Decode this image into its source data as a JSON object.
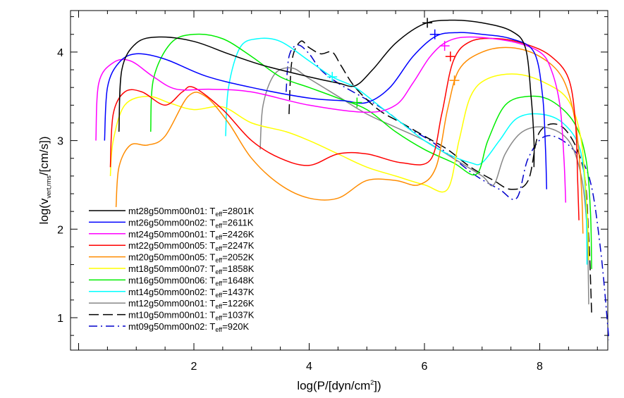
{
  "chart_data": {
    "type": "line",
    "xlabel": "log(P/[dyn/cm2])",
    "ylabel": "log(vvert,rms/[cm/s])",
    "xlim": [
      0,
      9.3
    ],
    "ylim": [
      0.5,
      4.5
    ],
    "xticks": [
      "2",
      "4",
      "6",
      "8"
    ],
    "yticks": [
      "1",
      "2",
      "3",
      "4"
    ],
    "grid": false,
    "legend_position": "lower-left",
    "series": [
      {
        "name": "mt28g50mm00n01: Teff=2801K",
        "model": "mt28g50mm00n01",
        "teff": "2801K",
        "color": "#000000",
        "dash": "solid",
        "marker": [
          6.05,
          4.33
        ],
        "points": [
          [
            0.7,
            3.1
          ],
          [
            0.75,
            3.8
          ],
          [
            1.0,
            4.1
          ],
          [
            1.4,
            4.17
          ],
          [
            2.0,
            4.12
          ],
          [
            2.6,
            3.98
          ],
          [
            3.2,
            3.85
          ],
          [
            4.0,
            3.72
          ],
          [
            4.5,
            3.65
          ],
          [
            4.8,
            3.62
          ],
          [
            5.1,
            3.8
          ],
          [
            5.5,
            4.1
          ],
          [
            6.0,
            4.32
          ],
          [
            6.5,
            4.36
          ],
          [
            7.0,
            4.33
          ],
          [
            7.5,
            4.24
          ],
          [
            7.75,
            4.05
          ],
          [
            7.85,
            3.5
          ],
          [
            7.9,
            3.0
          ],
          [
            7.9,
            2.7
          ]
        ]
      },
      {
        "name": "mt26g50mm00n02: Teff=2611K",
        "model": "mt26g50mm00n02",
        "teff": "2611K",
        "color": "#0000ff",
        "dash": "solid",
        "marker": [
          6.18,
          4.2
        ],
        "points": [
          [
            0.45,
            3.0
          ],
          [
            0.5,
            3.6
          ],
          [
            0.7,
            3.88
          ],
          [
            1.0,
            3.98
          ],
          [
            1.5,
            3.92
          ],
          [
            2.2,
            3.73
          ],
          [
            3.0,
            3.6
          ],
          [
            4.0,
            3.48
          ],
          [
            4.6,
            3.45
          ],
          [
            5.0,
            3.43
          ],
          [
            5.4,
            3.6
          ],
          [
            5.8,
            3.95
          ],
          [
            6.2,
            4.18
          ],
          [
            6.6,
            4.22
          ],
          [
            7.0,
            4.2
          ],
          [
            7.5,
            4.15
          ],
          [
            7.9,
            4.0
          ],
          [
            8.05,
            3.5
          ],
          [
            8.1,
            2.9
          ],
          [
            8.12,
            2.45
          ]
        ]
      },
      {
        "name": "mt24g50mm00n01: Teff=2426K",
        "model": "mt24g50mm00n01",
        "teff": "2426K",
        "color": "#ff00ff",
        "dash": "solid",
        "marker": [
          6.35,
          4.07
        ],
        "points": [
          [
            0.3,
            3.0
          ],
          [
            0.35,
            3.65
          ],
          [
            0.6,
            3.88
          ],
          [
            0.9,
            3.9
          ],
          [
            1.3,
            3.72
          ],
          [
            1.7,
            3.58
          ],
          [
            2.3,
            3.58
          ],
          [
            3.0,
            3.55
          ],
          [
            4.0,
            3.4
          ],
          [
            5.0,
            3.32
          ],
          [
            5.5,
            3.4
          ],
          [
            5.8,
            3.65
          ],
          [
            6.1,
            3.95
          ],
          [
            6.4,
            4.12
          ],
          [
            6.8,
            4.17
          ],
          [
            7.5,
            4.12
          ],
          [
            8.0,
            4.0
          ],
          [
            8.2,
            3.8
          ],
          [
            8.35,
            3.4
          ],
          [
            8.42,
            2.8
          ],
          [
            8.45,
            2.3
          ]
        ]
      },
      {
        "name": "mt22g50mm00n05: Teff=2247K",
        "model": "mt22g50mm00n05",
        "teff": "2247K",
        "color": "#ff0000",
        "dash": "solid",
        "marker": [
          6.45,
          3.95
        ],
        "points": [
          [
            0.55,
            2.7
          ],
          [
            0.6,
            3.3
          ],
          [
            0.8,
            3.55
          ],
          [
            1.1,
            3.55
          ],
          [
            1.5,
            3.4
          ],
          [
            1.8,
            3.55
          ],
          [
            2.0,
            3.6
          ],
          [
            2.5,
            3.35
          ],
          [
            3.0,
            3.0
          ],
          [
            3.5,
            2.8
          ],
          [
            4.0,
            2.72
          ],
          [
            4.5,
            2.85
          ],
          [
            5.0,
            2.85
          ],
          [
            5.6,
            2.75
          ],
          [
            6.1,
            2.78
          ],
          [
            6.3,
            3.3
          ],
          [
            6.5,
            3.9
          ],
          [
            6.8,
            4.12
          ],
          [
            7.3,
            4.15
          ],
          [
            7.8,
            4.08
          ],
          [
            8.2,
            3.95
          ],
          [
            8.5,
            3.7
          ],
          [
            8.62,
            3.2
          ],
          [
            8.66,
            2.5
          ],
          [
            8.68,
            2.1
          ]
        ]
      },
      {
        "name": "mt20g50mm00n05: Teff=2052K",
        "model": "mt20g50mm00n05",
        "teff": "2052K",
        "color": "#ff8c00",
        "dash": "solid",
        "marker": [
          6.52,
          3.68
        ],
        "points": [
          [
            0.65,
            2.25
          ],
          [
            0.7,
            2.7
          ],
          [
            0.9,
            2.95
          ],
          [
            1.2,
            2.95
          ],
          [
            1.5,
            3.05
          ],
          [
            1.9,
            3.5
          ],
          [
            2.2,
            3.5
          ],
          [
            2.6,
            3.2
          ],
          [
            3.0,
            2.8
          ],
          [
            3.5,
            2.5
          ],
          [
            4.0,
            2.35
          ],
          [
            4.5,
            2.35
          ],
          [
            5.0,
            2.55
          ],
          [
            5.5,
            2.55
          ],
          [
            5.9,
            2.5
          ],
          [
            6.2,
            2.7
          ],
          [
            6.4,
            3.35
          ],
          [
            6.6,
            3.8
          ],
          [
            7.0,
            4.0
          ],
          [
            7.5,
            4.05
          ],
          [
            8.0,
            3.95
          ],
          [
            8.4,
            3.7
          ],
          [
            8.62,
            3.2
          ],
          [
            8.72,
            2.5
          ],
          [
            8.75,
            1.95
          ]
        ]
      },
      {
        "name": "mt18g50mm00n07: Teff=1858K",
        "model": "mt18g50mm00n07",
        "teff": "1858K",
        "color": "#ffff00",
        "dash": "solid",
        "marker": null,
        "points": [
          [
            0.55,
            2.6
          ],
          [
            0.6,
            3.0
          ],
          [
            0.8,
            3.4
          ],
          [
            1.2,
            3.5
          ],
          [
            1.6,
            3.42
          ],
          [
            2.0,
            3.35
          ],
          [
            2.5,
            3.38
          ],
          [
            3.0,
            3.2
          ],
          [
            3.6,
            3.1
          ],
          [
            4.0,
            3.0
          ],
          [
            4.5,
            2.85
          ],
          [
            5.0,
            2.7
          ],
          [
            5.5,
            2.6
          ],
          [
            6.0,
            2.5
          ],
          [
            6.4,
            2.45
          ],
          [
            6.6,
            3.0
          ],
          [
            6.8,
            3.5
          ],
          [
            7.1,
            3.7
          ],
          [
            7.6,
            3.75
          ],
          [
            8.1,
            3.65
          ],
          [
            8.5,
            3.45
          ],
          [
            8.72,
            3.0
          ],
          [
            8.82,
            2.2
          ],
          [
            8.85,
            1.65
          ]
        ]
      },
      {
        "name": "mt16g50mm00n06: Teff=1648K",
        "model": "mt16g50mm00n06",
        "teff": "1648K",
        "color": "#00ee00",
        "dash": "solid",
        "marker": [
          4.83,
          3.43
        ],
        "points": [
          [
            1.25,
            3.1
          ],
          [
            1.3,
            3.7
          ],
          [
            1.6,
            4.1
          ],
          [
            2.0,
            4.2
          ],
          [
            2.5,
            4.15
          ],
          [
            3.0,
            3.95
          ],
          [
            3.5,
            3.72
          ],
          [
            4.0,
            3.6
          ],
          [
            4.5,
            3.48
          ],
          [
            5.0,
            3.35
          ],
          [
            5.5,
            3.1
          ],
          [
            6.0,
            2.9
          ],
          [
            6.5,
            2.75
          ],
          [
            6.9,
            2.62
          ],
          [
            7.1,
            3.0
          ],
          [
            7.4,
            3.4
          ],
          [
            7.8,
            3.5
          ],
          [
            8.2,
            3.45
          ],
          [
            8.6,
            3.2
          ],
          [
            8.8,
            2.8
          ],
          [
            8.88,
            2.2
          ],
          [
            8.9,
            1.55
          ]
        ]
      },
      {
        "name": "mt14g50mm00n02: Teff=1437K",
        "model": "mt14g50mm00n02",
        "teff": "1437K",
        "color": "#00ffff",
        "dash": "solid",
        "marker": [
          4.4,
          3.72
        ],
        "points": [
          [
            2.55,
            3.05
          ],
          [
            2.6,
            3.6
          ],
          [
            2.8,
            4.05
          ],
          [
            3.1,
            4.15
          ],
          [
            3.5,
            4.12
          ],
          [
            4.0,
            3.9
          ],
          [
            4.4,
            3.72
          ],
          [
            4.8,
            3.6
          ],
          [
            5.2,
            3.4
          ],
          [
            5.6,
            3.2
          ],
          [
            6.0,
            3.0
          ],
          [
            6.4,
            2.85
          ],
          [
            6.8,
            2.75
          ],
          [
            7.0,
            2.75
          ],
          [
            7.3,
            3.0
          ],
          [
            7.6,
            3.25
          ],
          [
            8.0,
            3.3
          ],
          [
            8.4,
            3.2
          ],
          [
            8.7,
            2.9
          ],
          [
            8.8,
            2.3
          ],
          [
            8.82,
            1.6
          ]
        ]
      },
      {
        "name": "mt12g50mm00n01: Teff=1226K",
        "model": "mt12g50mm00n01",
        "teff": "1226K",
        "color": "#888888",
        "dash": "solid",
        "marker": null,
        "points": [
          [
            3.15,
            2.9
          ],
          [
            3.2,
            3.4
          ],
          [
            3.4,
            3.75
          ],
          [
            3.7,
            3.82
          ],
          [
            4.0,
            3.7
          ],
          [
            4.5,
            3.5
          ],
          [
            5.0,
            3.3
          ],
          [
            5.5,
            3.15
          ],
          [
            6.0,
            3.0
          ],
          [
            6.5,
            2.8
          ],
          [
            7.0,
            2.6
          ],
          [
            7.2,
            2.5
          ],
          [
            7.4,
            2.85
          ],
          [
            7.7,
            3.1
          ],
          [
            8.1,
            3.15
          ],
          [
            8.5,
            3.0
          ],
          [
            8.72,
            2.6
          ],
          [
            8.82,
            2.0
          ],
          [
            8.85,
            1.15
          ]
        ]
      },
      {
        "name": "mt10g50mm00n01: Teff=1037K",
        "model": "mt10g50mm00n01",
        "teff": "1037K",
        "color": "#000000",
        "dash": "long",
        "marker": null,
        "points": [
          [
            3.65,
            3.3
          ],
          [
            3.7,
            3.9
          ],
          [
            3.85,
            4.12
          ],
          [
            4.0,
            4.05
          ],
          [
            4.2,
            3.98
          ],
          [
            4.4,
            4.0
          ],
          [
            4.55,
            3.85
          ],
          [
            4.8,
            3.6
          ],
          [
            5.2,
            3.35
          ],
          [
            5.6,
            3.2
          ],
          [
            6.0,
            3.05
          ],
          [
            6.4,
            2.9
          ],
          [
            6.8,
            2.7
          ],
          [
            7.2,
            2.55
          ],
          [
            7.5,
            2.45
          ],
          [
            7.8,
            2.55
          ],
          [
            8.0,
            3.1
          ],
          [
            8.4,
            3.15
          ],
          [
            8.75,
            2.7
          ],
          [
            8.85,
            1.9
          ],
          [
            8.9,
            1.05
          ]
        ]
      },
      {
        "name": "mt09g50mm00n02: Teff=920K",
        "model": "mt09g50mm00n02",
        "teff": "920K",
        "color": "#0000cc",
        "dash": "dashdot",
        "marker": null,
        "points": [
          [
            3.6,
            3.55
          ],
          [
            3.65,
            3.95
          ],
          [
            3.8,
            4.08
          ],
          [
            4.0,
            3.98
          ],
          [
            4.2,
            3.8
          ],
          [
            4.5,
            3.65
          ],
          [
            4.9,
            3.5
          ],
          [
            5.3,
            3.35
          ],
          [
            5.7,
            3.15
          ],
          [
            6.1,
            3.0
          ],
          [
            6.5,
            2.8
          ],
          [
            6.9,
            2.6
          ],
          [
            7.3,
            2.45
          ],
          [
            7.6,
            2.35
          ],
          [
            7.8,
            2.8
          ],
          [
            8.1,
            3.05
          ],
          [
            8.5,
            2.95
          ],
          [
            8.85,
            2.6
          ],
          [
            9.05,
            1.8
          ],
          [
            9.2,
            0.75
          ]
        ]
      }
    ]
  }
}
